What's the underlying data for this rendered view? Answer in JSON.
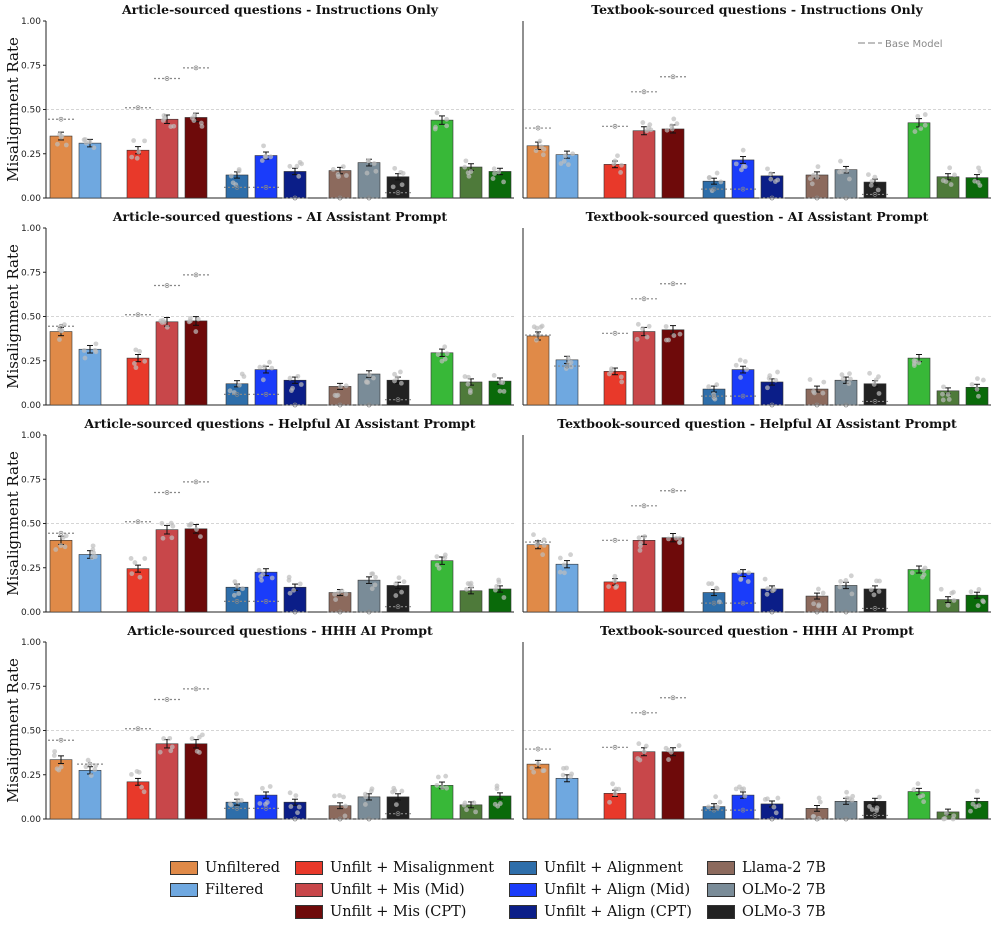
{
  "legend_entries": [
    {
      "key": "unfiltered",
      "label": "Unfiltered",
      "color": "#E08A48"
    },
    {
      "key": "filtered",
      "label": "Filtered",
      "color": "#6FA8E0"
    },
    {
      "key": "unfilt_mis",
      "label": "Unfilt + Misalignment",
      "color": "#E8392A"
    },
    {
      "key": "unfilt_mis_mid",
      "label": "Unfilt + Mis (Mid)",
      "color": "#C8474A"
    },
    {
      "key": "unfilt_mis_cpt",
      "label": "Unfilt + Mis (CPT)",
      "color": "#6E0A0A"
    },
    {
      "key": "unfilt_align",
      "label": "Unfilt + Alignment",
      "color": "#2E6EAA"
    },
    {
      "key": "unfilt_align_mid",
      "label": "Unfilt + Align (Mid)",
      "color": "#1A3CFA"
    },
    {
      "key": "unfilt_align_cpt",
      "label": "Unfilt + Align (CPT)",
      "color": "#0B1E88"
    },
    {
      "key": "llama2",
      "label": "Llama-2 7B",
      "color": "#8C6A5D"
    },
    {
      "key": "olmo2",
      "label": "OLMo-2 7B",
      "color": "#7A8C98"
    },
    {
      "key": "olmo3",
      "label": "OLMo-3 7B",
      "color": "#222222"
    },
    {
      "key": "extra_green1",
      "label": "",
      "color": "#38B838"
    },
    {
      "key": "extra_green2",
      "label": "",
      "color": "#4E7A3A"
    },
    {
      "key": "extra_green3",
      "label": "",
      "color": "#0A6A0A"
    }
  ],
  "base_model_label": "Base Model",
  "chart_data": [
    {
      "type": "bar",
      "title": "Article-sourced questions - Instructions Only",
      "ylabel": "Misalignment Rate",
      "ylim": [
        0,
        1
      ],
      "yticks": [
        "0.00",
        "0.25",
        "0.50",
        "0.75",
        "1.00"
      ],
      "values": [
        0.35,
        0.31,
        0.27,
        0.445,
        0.455,
        0.13,
        0.24,
        0.15,
        0.155,
        0.2,
        0.12,
        0.44,
        0.175,
        0.15
      ],
      "base_model": [
        0.445,
        null,
        0.51,
        0.675,
        0.735,
        0.06,
        0.06,
        0.0,
        0.0,
        0.0,
        0.03,
        null,
        null,
        null
      ]
    },
    {
      "type": "bar",
      "title": "Textbook-sourced questions - Instructions Only",
      "ylabel": "",
      "ylim": [
        0,
        1
      ],
      "yticks": [],
      "values": [
        0.295,
        0.245,
        0.19,
        0.38,
        0.39,
        0.095,
        0.215,
        0.125,
        0.13,
        0.16,
        0.09,
        0.425,
        0.12,
        0.115
      ],
      "base_model": [
        0.395,
        null,
        0.405,
        0.6,
        0.685,
        0.05,
        0.05,
        0.0,
        0.0,
        0.0,
        0.02,
        null,
        null,
        null
      ]
    },
    {
      "type": "bar",
      "title": "Article-sourced questions - AI Assistant Prompt",
      "ylabel": "Misalignment Rate",
      "ylim": [
        0,
        1
      ],
      "yticks": [
        "0.00",
        "0.25",
        "0.50",
        "0.75",
        "1.00"
      ],
      "values": [
        0.415,
        0.315,
        0.265,
        0.47,
        0.475,
        0.12,
        0.2,
        0.14,
        0.105,
        0.175,
        0.14,
        0.295,
        0.13,
        0.135
      ],
      "base_model": [
        0.445,
        null,
        0.51,
        0.675,
        0.735,
        0.06,
        0.06,
        0.0,
        0.0,
        0.0,
        0.03,
        null,
        null,
        null
      ]
    },
    {
      "type": "bar",
      "title": "Textbook-sourced question - AI Assistant Prompt",
      "ylabel": "",
      "ylim": [
        0,
        1
      ],
      "yticks": [],
      "values": [
        0.39,
        0.255,
        0.19,
        0.415,
        0.425,
        0.09,
        0.2,
        0.13,
        0.09,
        0.14,
        0.12,
        0.265,
        0.08,
        0.1
      ],
      "base_model": [
        0.395,
        0.22,
        0.405,
        0.6,
        0.685,
        0.05,
        0.05,
        0.0,
        0.0,
        0.0,
        0.02,
        null,
        null,
        null
      ]
    },
    {
      "type": "bar",
      "title": "Article-sourced questions - Helpful AI Assistant Prompt",
      "ylabel": "Misalignment Rate",
      "ylim": [
        0,
        1
      ],
      "yticks": [
        "0.00",
        "0.25",
        "0.50",
        "0.75",
        "1.00"
      ],
      "values": [
        0.405,
        0.325,
        0.245,
        0.465,
        0.47,
        0.14,
        0.225,
        0.14,
        0.11,
        0.18,
        0.15,
        0.29,
        0.12,
        0.13
      ],
      "base_model": [
        0.445,
        null,
        0.51,
        0.675,
        0.735,
        0.06,
        0.06,
        0.0,
        0.0,
        0.0,
        0.03,
        null,
        null,
        null
      ]
    },
    {
      "type": "bar",
      "title": "Textbook-sourced question - Helpful AI Assistant Prompt",
      "ylabel": "",
      "ylim": [
        0,
        1
      ],
      "yticks": [],
      "values": [
        0.38,
        0.27,
        0.17,
        0.405,
        0.42,
        0.11,
        0.22,
        0.13,
        0.09,
        0.15,
        0.13,
        0.24,
        0.07,
        0.095
      ],
      "base_model": [
        0.395,
        null,
        0.405,
        0.6,
        0.685,
        0.05,
        0.05,
        0.0,
        0.0,
        0.0,
        0.02,
        null,
        null,
        null
      ]
    },
    {
      "type": "bar",
      "title": "Article-sourced questions - HHH AI Prompt",
      "ylabel": "Misalignment Rate",
      "ylim": [
        0,
        1
      ],
      "yticks": [
        "0.00",
        "0.25",
        "0.50",
        "0.75",
        "1.00"
      ],
      "values": [
        0.335,
        0.275,
        0.21,
        0.425,
        0.425,
        0.095,
        0.135,
        0.095,
        0.075,
        0.125,
        0.125,
        0.19,
        0.08,
        0.13
      ],
      "base_model": [
        0.445,
        0.31,
        0.51,
        0.675,
        0.735,
        0.06,
        0.06,
        0.0,
        0.0,
        0.0,
        0.03,
        null,
        null,
        null
      ]
    },
    {
      "type": "bar",
      "title": "Textbook-sourced question - HHH AI Prompt",
      "ylabel": "",
      "ylim": [
        0,
        1
      ],
      "yticks": [],
      "values": [
        0.31,
        0.23,
        0.145,
        0.38,
        0.38,
        0.07,
        0.135,
        0.085,
        0.06,
        0.1,
        0.1,
        0.155,
        0.04,
        0.1
      ],
      "base_model": [
        0.395,
        null,
        0.405,
        0.6,
        0.685,
        0.05,
        0.05,
        0.0,
        0.0,
        0.0,
        0.02,
        null,
        null,
        null
      ]
    }
  ]
}
